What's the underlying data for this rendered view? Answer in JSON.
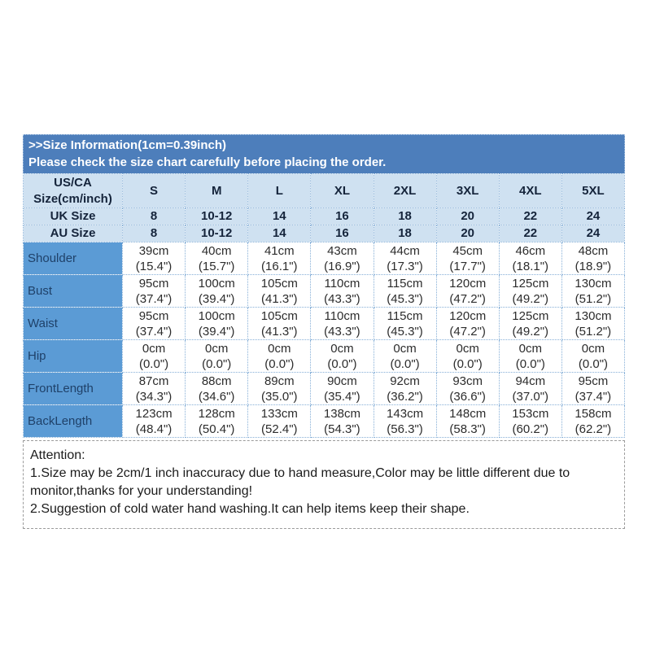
{
  "colors": {
    "title_bar_bg": "#4d7ebb",
    "title_bar_text": "#ffffff",
    "header_row_bg": "#cfe1f1",
    "header_row_text": "#15243b",
    "label_column_bg": "#5b9bd5",
    "label_column_text": "#1f4169",
    "cell_border_dotted": "#86afd7",
    "attention_border_dashed": "#9b9b9b",
    "data_cell_bg": "#ffffff",
    "data_cell_text": "#2c2c2c"
  },
  "chart_data": {
    "type": "table",
    "title": ">>Size Information(1cm=0.39inch)",
    "subtitle": "Please check the size chart carefully before placing the order.",
    "columns": [
      "US/CA Size(cm/inch)",
      "S",
      "M",
      "L",
      "XL",
      "2XL",
      "3XL",
      "4XL",
      "5XL"
    ],
    "size_rows": [
      {
        "label": "UK Size",
        "values": [
          "8",
          "10-12",
          "14",
          "16",
          "18",
          "20",
          "22",
          "24"
        ]
      },
      {
        "label": "AU Size",
        "values": [
          "8",
          "10-12",
          "14",
          "16",
          "18",
          "20",
          "22",
          "24"
        ]
      }
    ],
    "measurement_rows": [
      {
        "label": "Shoulder",
        "cm": [
          "39cm",
          "40cm",
          "41cm",
          "43cm",
          "44cm",
          "45cm",
          "46cm",
          "48cm"
        ],
        "inch": [
          "(15.4\")",
          "(15.7\")",
          "(16.1\")",
          "(16.9\")",
          "(17.3\")",
          "(17.7\")",
          "(18.1\")",
          "(18.9\")"
        ]
      },
      {
        "label": "Bust",
        "cm": [
          "95cm",
          "100cm",
          "105cm",
          "110cm",
          "115cm",
          "120cm",
          "125cm",
          "130cm"
        ],
        "inch": [
          "(37.4\")",
          "(39.4\")",
          "(41.3\")",
          "(43.3\")",
          "(45.3\")",
          "(47.2\")",
          "(49.2\")",
          "(51.2\")"
        ]
      },
      {
        "label": "Waist",
        "cm": [
          "95cm",
          "100cm",
          "105cm",
          "110cm",
          "115cm",
          "120cm",
          "125cm",
          "130cm"
        ],
        "inch": [
          "(37.4\")",
          "(39.4\")",
          "(41.3\")",
          "(43.3\")",
          "(45.3\")",
          "(47.2\")",
          "(49.2\")",
          "(51.2\")"
        ]
      },
      {
        "label": "Hip",
        "cm": [
          "0cm",
          "0cm",
          "0cm",
          "0cm",
          "0cm",
          "0cm",
          "0cm",
          "0cm"
        ],
        "inch": [
          "(0.0\")",
          "(0.0\")",
          "(0.0\")",
          "(0.0\")",
          "(0.0\")",
          "(0.0\")",
          "(0.0\")",
          "(0.0\")"
        ]
      },
      {
        "label": "FrontLength",
        "cm": [
          "87cm",
          "88cm",
          "89cm",
          "90cm",
          "92cm",
          "93cm",
          "94cm",
          "95cm"
        ],
        "inch": [
          "(34.3\")",
          "(34.6\")",
          "(35.0\")",
          "(35.4\")",
          "(36.2\")",
          "(36.6\")",
          "(37.0\")",
          "(37.4\")"
        ]
      },
      {
        "label": "BackLength",
        "cm": [
          "123cm",
          "128cm",
          "133cm",
          "138cm",
          "143cm",
          "148cm",
          "153cm",
          "158cm"
        ],
        "inch": [
          "(48.4\")",
          "(50.4\")",
          "(52.4\")",
          "(54.3\")",
          "(56.3\")",
          "(58.3\")",
          "(60.2\")",
          "(62.2\")"
        ]
      }
    ]
  },
  "attention": {
    "title": "Attention:",
    "lines": [
      "1.Size may be 2cm/1 inch inaccuracy due to hand measure,Color may be little different due to monitor,thanks for your understanding!",
      "2.Suggestion of cold water hand washing.It can help items keep their shape."
    ]
  }
}
